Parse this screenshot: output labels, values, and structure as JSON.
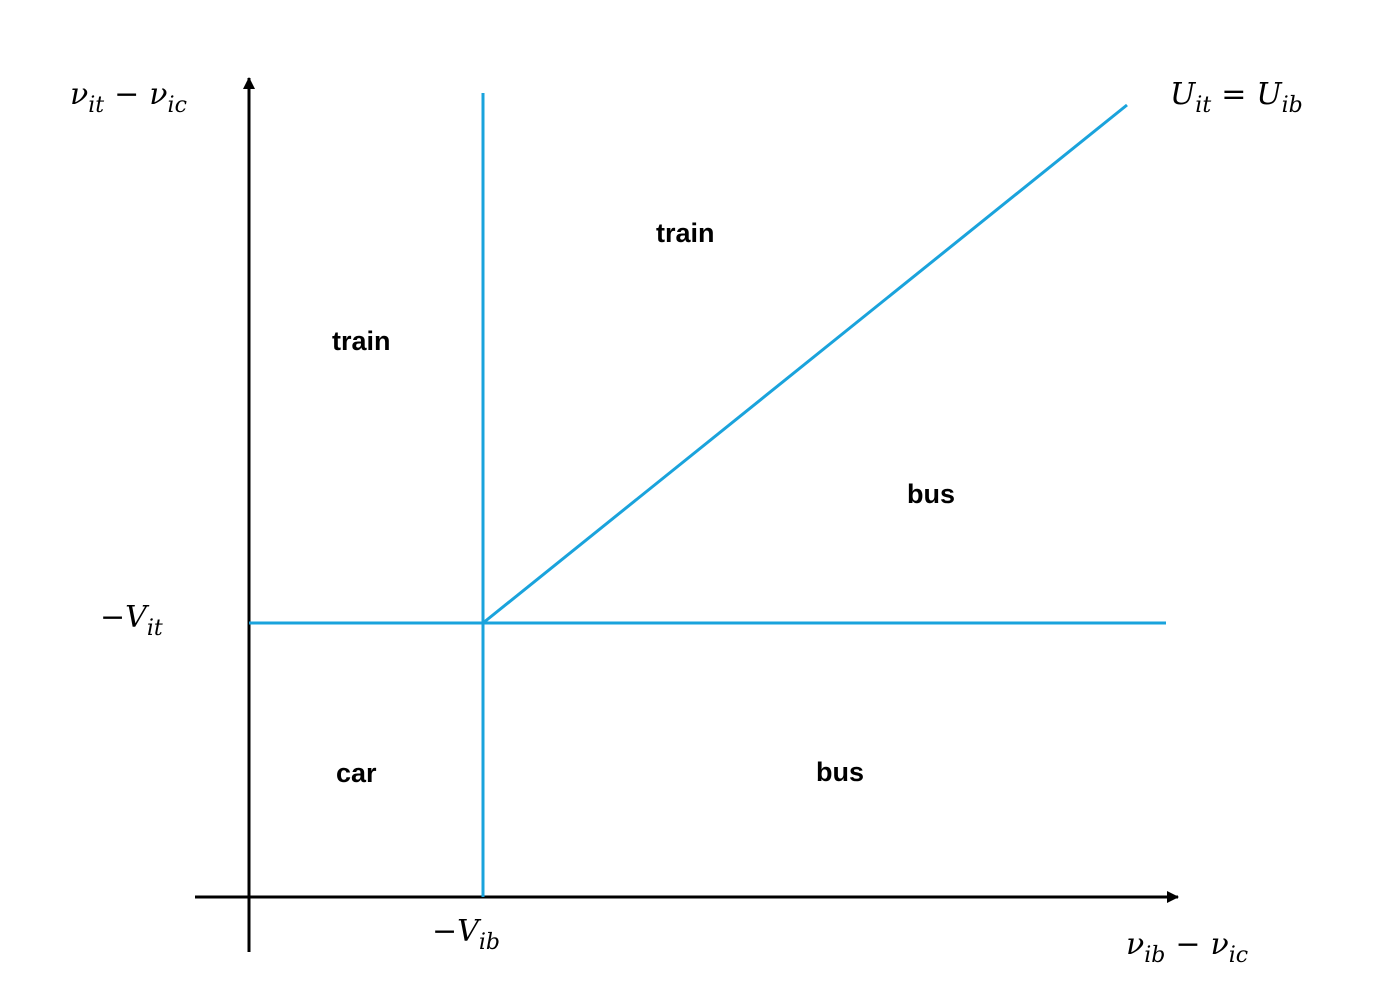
{
  "diagram": {
    "colors": {
      "axis": "#000000",
      "boundary": "#1aa3dc"
    },
    "axis_labels": {
      "y": {
        "a": "ν",
        "a_sub": "it",
        "op": "−",
        "b": "ν",
        "b_sub": "ic"
      },
      "x": {
        "a": "ν",
        "a_sub": "ib",
        "op": "−",
        "b": "ν",
        "b_sub": "ic"
      }
    },
    "tick_labels": {
      "y_threshold": {
        "sign": "−",
        "sym": "V",
        "sub": "it"
      },
      "x_threshold": {
        "sign": "−",
        "sym": "V",
        "sub": "ib"
      }
    },
    "diagonal_label": {
      "lhs": "U",
      "lhs_sub": "it",
      "op": "=",
      "rhs": "U",
      "rhs_sub": "ib"
    },
    "regions": {
      "train_upper_right": "train",
      "train_upper_left": "train",
      "bus_right": "bus",
      "car_lower_left": "car",
      "bus_lower_right": "bus"
    }
  }
}
